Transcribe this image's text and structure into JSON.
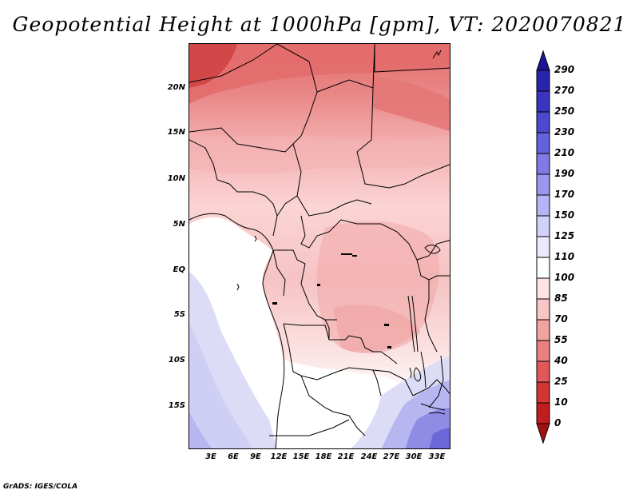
{
  "title": "Geopotential Height at 1000hPa [gpm], VT: 2020070821",
  "footer": "GrADS: IGES/COLA",
  "lat_labels": [
    "20N",
    "15N",
    "10N",
    "5N",
    "EQ",
    "5S",
    "10S",
    "15S"
  ],
  "lon_labels": [
    "3E",
    "6E",
    "9E",
    "12E",
    "15E",
    "18E",
    "21E",
    "24E",
    "27E",
    "30E",
    "33E"
  ],
  "colorbar": {
    "labels": [
      "290",
      "270",
      "250",
      "230",
      "210",
      "190",
      "170",
      "150",
      "125",
      "110",
      "100",
      "85",
      "70",
      "55",
      "40",
      "25",
      "10",
      "0"
    ],
    "colors": [
      "#1c1496",
      "#2a24ad",
      "#3a34c0",
      "#4d48cf",
      "#6560dc",
      "#7e7be6",
      "#9997ee",
      "#b5b4f4",
      "#d2d2f8",
      "#eaeafc",
      "#ffffff",
      "#fde3e3",
      "#f9c5c5",
      "#f2a2a2",
      "#eb8080",
      "#e25858",
      "#d43434",
      "#c01e1e",
      "#a01212"
    ]
  }
}
